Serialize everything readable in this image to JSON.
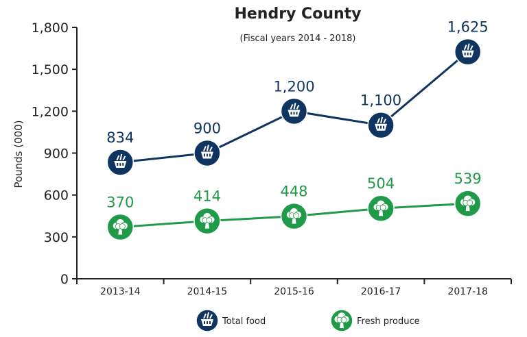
{
  "chart_data": {
    "type": "line",
    "title": "Hendry County",
    "subtitle": "(Fiscal years 2014 - 2018)",
    "xlabel": "",
    "ylabel": "Pounds (000)",
    "ylim": [
      0,
      1800
    ],
    "yticks": [
      0,
      300,
      600,
      900,
      1200,
      1500,
      1800
    ],
    "ytick_labels": [
      "0",
      "300",
      "600",
      "900",
      "1,200",
      "1,500",
      "1,800"
    ],
    "categories": [
      "2013-14",
      "2014-15",
      "2015-16",
      "2016-17",
      "2017-18"
    ],
    "grid": false,
    "legend_position": "bottom",
    "series": [
      {
        "name": "Total food",
        "color": "#0f3460",
        "icon": "basket-icon",
        "values": [
          834,
          900,
          1200,
          1100,
          1625
        ],
        "labels": [
          "834",
          "900",
          "1,200",
          "1,100",
          "1,625"
        ]
      },
      {
        "name": "Fresh produce",
        "color": "#1f9a48",
        "icon": "broccoli-icon",
        "values": [
          370,
          414,
          448,
          504,
          539
        ],
        "labels": [
          "370",
          "414",
          "448",
          "504",
          "539"
        ]
      }
    ]
  }
}
